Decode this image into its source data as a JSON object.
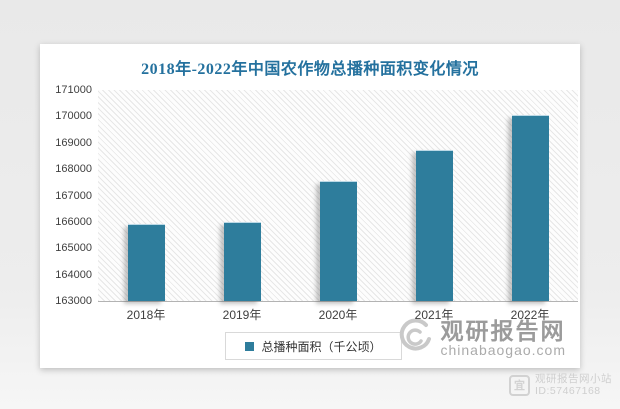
{
  "page": {
    "background_color": "#ededed",
    "card_color": "#ffffff"
  },
  "chart_data": {
    "type": "bar",
    "title": "2018年-2022年中国农作物总播种面积变化情况",
    "title_color": "#24719e",
    "categories": [
      "2018年",
      "2019年",
      "2020年",
      "2021年",
      "2022年"
    ],
    "series": [
      {
        "name": "总播种面积（千公顷）",
        "values": [
          165900,
          165950,
          167500,
          168700,
          170000
        ]
      }
    ],
    "bar_color": "#2e7d9c",
    "ylim": [
      163000,
      171000
    ],
    "yticks": [
      163000,
      164000,
      165000,
      166000,
      167000,
      168000,
      169000,
      170000,
      171000
    ],
    "xlabel": "",
    "ylabel": "",
    "grid": false,
    "legend_position": "bottom",
    "plot_background": "diagonal-hatch"
  },
  "watermark": {
    "logo": "guanyan-spiral-logo",
    "site_name": "观研报告网",
    "site_url": "chinabaogao.com"
  },
  "badge": {
    "icon": "guanyan-seal-icon",
    "line1": "观研报告网小站",
    "line2": "ID:57467168"
  }
}
